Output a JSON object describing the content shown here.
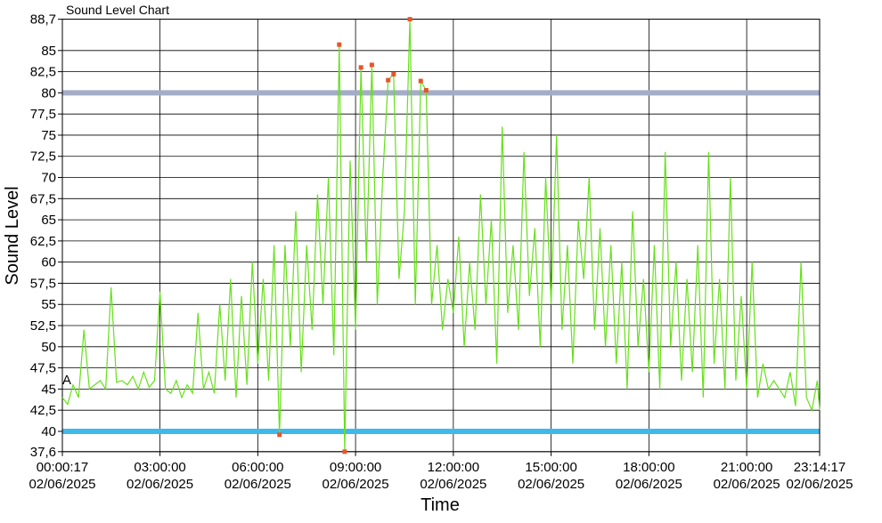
{
  "chart_data": {
    "type": "line",
    "title": "Sound Level Chart",
    "x_label": "Time",
    "y_label": "Sound Level",
    "annotation": "A",
    "xlim": [
      17,
      83657
    ],
    "ylim": [
      37.6,
      88.7
    ],
    "xticks": [
      {
        "value": 17,
        "label": "00:00:17\n02/06/2025"
      },
      {
        "value": 10800,
        "label": "03:00:00\n02/06/2025"
      },
      {
        "value": 21600,
        "label": "06:00:00\n02/06/2025"
      },
      {
        "value": 32400,
        "label": "09:00:00\n02/06/2025"
      },
      {
        "value": 43200,
        "label": "12:00:00\n02/06/2025"
      },
      {
        "value": 54000,
        "label": "15:00:00\n02/06/2025"
      },
      {
        "value": 64800,
        "label": "18:00:00\n02/06/2025"
      },
      {
        "value": 75600,
        "label": "21:00:00\n02/06/2025"
      },
      {
        "value": 83657,
        "label": "23:14:17\n02/06/2025"
      }
    ],
    "yticks": [
      {
        "value": 37.6,
        "label": "37,6"
      },
      40,
      {
        "value": 42.5,
        "label": "42,5"
      },
      45,
      {
        "value": 47.5,
        "label": "47,5"
      },
      50,
      {
        "value": 52.5,
        "label": "52,5"
      },
      55,
      {
        "value": 57.5,
        "label": "57,5"
      },
      60,
      {
        "value": 62.5,
        "label": "62,5"
      },
      65,
      {
        "value": 67.5,
        "label": "67,5"
      },
      70,
      {
        "value": 72.5,
        "label": "72,5"
      },
      75,
      {
        "value": 77.5,
        "label": "77,5"
      },
      80,
      {
        "value": 82.5,
        "label": "82,5"
      },
      85,
      {
        "value": 88.7,
        "label": "88,7"
      }
    ],
    "grid": true,
    "thresholds": [
      {
        "value": 80,
        "color": "#a3adc6"
      },
      {
        "value": 40,
        "color": "#3fb9ea"
      }
    ],
    "series": [
      {
        "color": "#66e01a",
        "x": [
          17,
          600,
          1200,
          1800,
          2400,
          3000,
          3600,
          4200,
          4800,
          5400,
          6000,
          6600,
          7200,
          7800,
          8400,
          9000,
          9600,
          10200,
          10800,
          11400,
          12000,
          12600,
          13200,
          13800,
          14400,
          15000,
          15600,
          16200,
          16800,
          17400,
          18000,
          18600,
          19200,
          19800,
          20400,
          21000,
          21600,
          22200,
          22800,
          23400,
          24000,
          24600,
          25200,
          25800,
          26400,
          27000,
          27600,
          28200,
          28800,
          29400,
          30000,
          30600,
          31200,
          31800,
          32400,
          33000,
          33600,
          34200,
          34800,
          35400,
          36000,
          36600,
          37200,
          37800,
          38400,
          39000,
          39600,
          40200,
          40800,
          41400,
          42000,
          42600,
          43200,
          43800,
          44400,
          45000,
          45600,
          46200,
          46800,
          47400,
          48000,
          48600,
          49200,
          49800,
          50400,
          51000,
          51600,
          52200,
          52800,
          53400,
          54000,
          54600,
          55200,
          55800,
          56400,
          57000,
          57600,
          58200,
          58800,
          59400,
          60000,
          60600,
          61200,
          61800,
          62400,
          63000,
          63600,
          64200,
          64800,
          65400,
          66000,
          66600,
          67200,
          67800,
          68400,
          69000,
          69600,
          70200,
          70800,
          71400,
          72000,
          72600,
          73200,
          73800,
          74400,
          75000,
          75600,
          76200,
          76800,
          77400,
          78000,
          78600,
          79200,
          79800,
          80400,
          81000,
          81600,
          82200,
          82800,
          83400,
          83657
        ],
        "values": [
          44,
          43.2,
          45.5,
          44,
          52,
          45,
          45.5,
          46,
          45,
          57,
          45.8,
          46,
          45.5,
          46.5,
          45,
          47,
          45.2,
          46,
          56.5,
          45,
          44.5,
          46,
          44,
          45.5,
          44.5,
          54,
          45,
          47,
          44.5,
          55,
          46,
          58,
          44,
          56,
          45.5,
          60,
          48,
          58,
          46,
          62,
          39.6,
          62,
          50,
          66,
          47,
          62,
          52,
          68,
          55,
          70,
          49,
          85.7,
          37.6,
          72,
          52,
          83,
          60,
          83.3,
          55,
          70,
          81.5,
          82.2,
          58,
          66,
          88.7,
          55,
          81.4,
          80.3,
          55,
          62,
          52,
          58,
          54,
          63,
          50,
          60,
          52,
          68,
          55,
          65,
          48,
          76,
          54,
          62,
          52,
          73,
          56,
          64,
          50,
          70,
          55,
          75,
          52,
          62,
          48,
          65,
          58,
          70,
          52,
          64,
          50,
          62,
          48,
          60,
          45,
          66,
          50,
          58,
          47,
          62,
          45,
          73,
          50,
          60,
          46,
          58,
          47,
          62,
          44,
          73,
          48,
          58,
          45,
          70,
          46,
          56,
          45,
          60,
          44,
          48,
          45,
          46,
          45,
          44,
          47,
          43,
          60,
          44,
          42.5,
          46,
          42.5
        ]
      },
      {
        "type": "scatter",
        "color": "#e8542a",
        "x": [
          24000,
          30600,
          31200,
          33000,
          34200,
          36000,
          36600,
          38400,
          39600,
          40200
        ],
        "values": [
          39.6,
          85.7,
          37.6,
          83,
          83.3,
          81.5,
          82.2,
          88.7,
          81.4,
          80.3
        ]
      }
    ]
  }
}
